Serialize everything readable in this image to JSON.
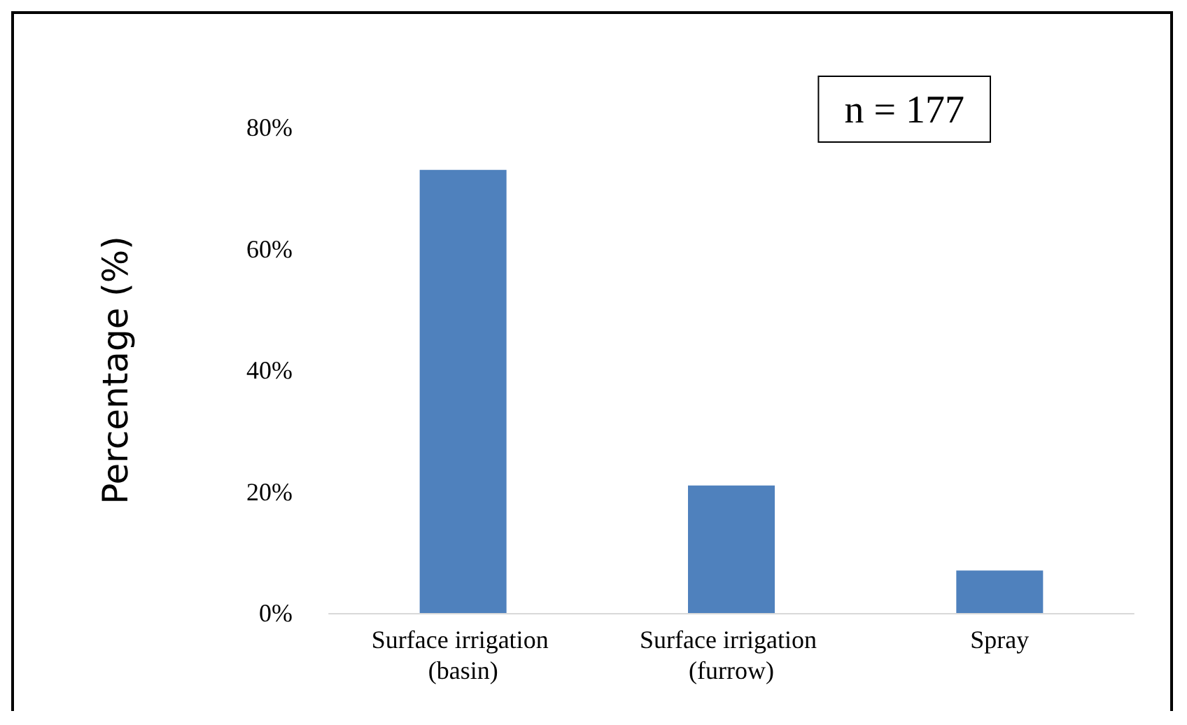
{
  "chart_data": {
    "type": "bar",
    "ylabel": "Percentage (%)",
    "categories": [
      "Surface irrigation (basin)",
      "Surface irrigation (furrow)",
      "Spray"
    ],
    "values": [
      73,
      21,
      7
    ],
    "color": "#4f81bd",
    "ylim": [
      0,
      80
    ],
    "yticks": [
      {
        "value": 0,
        "label": "0%"
      },
      {
        "value": 20,
        "label": "20%"
      },
      {
        "value": 40,
        "label": "40%"
      },
      {
        "value": 60,
        "label": "60%"
      },
      {
        "value": 80,
        "label": "80%"
      }
    ],
    "grid": false,
    "annotations": [
      "n = 177"
    ]
  }
}
